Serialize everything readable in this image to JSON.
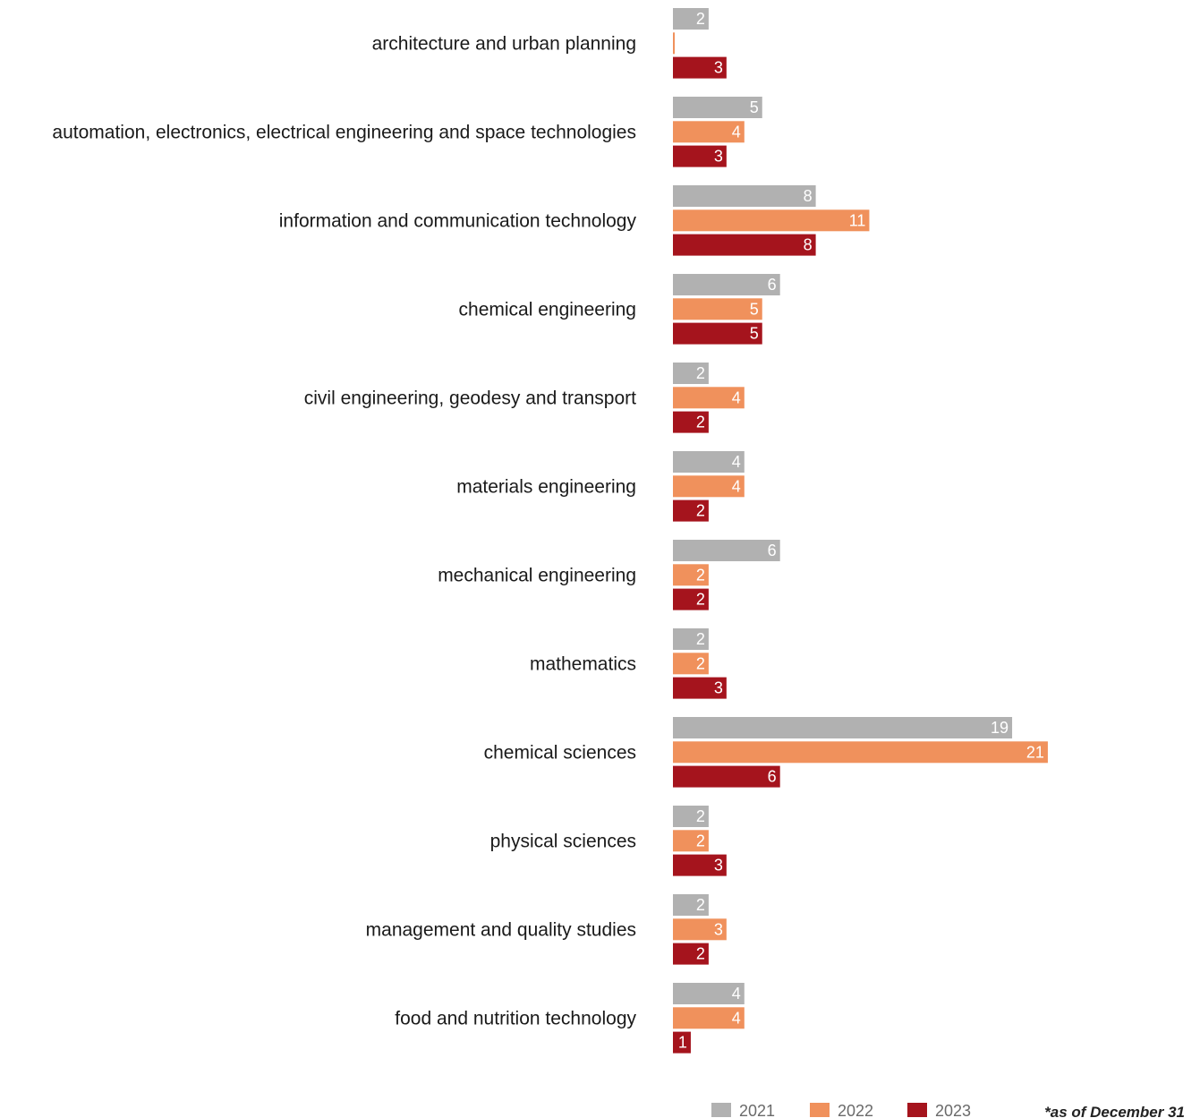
{
  "chart_data": {
    "type": "bar",
    "orientation": "horizontal",
    "categories": [
      "architecture and urban planning",
      "automation, electronics, electrical engineering and space technologies",
      "information and communication technology",
      "chemical engineering",
      "civil engineering, geodesy and transport",
      "materials engineering",
      "mechanical engineering",
      "mathematics",
      "chemical sciences",
      "physical sciences",
      "management and quality studies",
      "food and nutrition technology"
    ],
    "series": [
      {
        "name": "2021",
        "color": "#b1b1b1",
        "values": [
          2,
          5,
          8,
          6,
          2,
          4,
          6,
          2,
          19,
          2,
          2,
          4
        ]
      },
      {
        "name": "2022",
        "color": "#f0915c",
        "values": [
          0,
          4,
          11,
          5,
          4,
          4,
          2,
          2,
          21,
          2,
          3,
          4
        ]
      },
      {
        "name": "2023",
        "color": "#a5141d",
        "values": [
          3,
          3,
          8,
          5,
          2,
          2,
          2,
          3,
          6,
          3,
          2,
          1
        ]
      }
    ],
    "xlim": [
      0,
      21
    ],
    "grid": false,
    "legend": "bottom",
    "note": "*as of December 31"
  }
}
